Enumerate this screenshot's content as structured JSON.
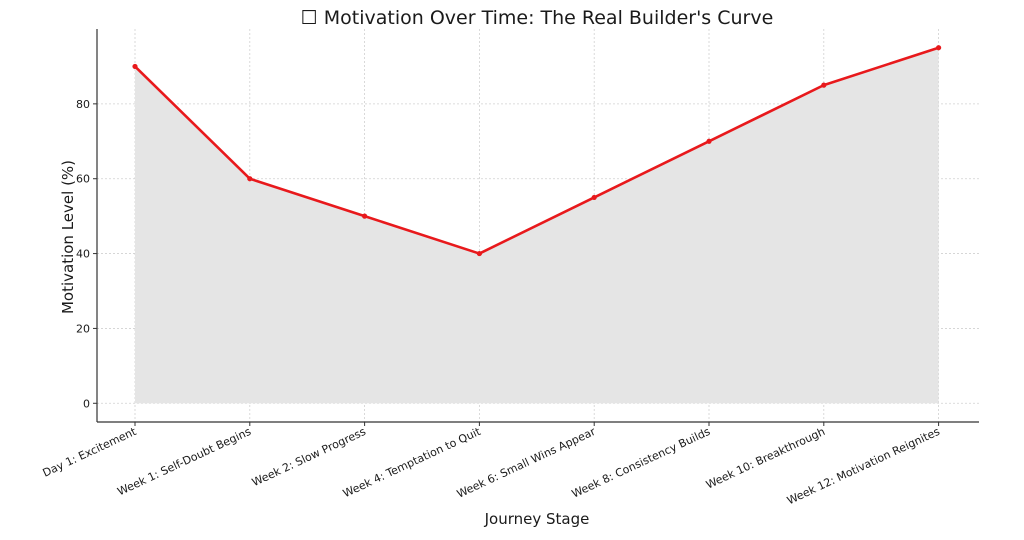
{
  "chart_data": {
    "type": "line",
    "title": "☐ Motivation Over Time: The Real Builder's Curve",
    "xlabel": "Journey Stage",
    "ylabel": "Motivation Level (%)",
    "categories": [
      "Day 1: Excitement",
      "Week 1: Self-Doubt Begins",
      "Week 2: Slow Progress",
      "Week 4: Temptation to Quit",
      "Week 6: Small Wins Appear",
      "Week 8: Consistency Builds",
      "Week 10: Breakthrough",
      "Week 12: Motivation Reignites"
    ],
    "series": [
      {
        "values": [
          90,
          60,
          50,
          40,
          55,
          70,
          85,
          95
        ]
      }
    ],
    "yticks": [
      "0",
      "20",
      "40",
      "60",
      "80"
    ],
    "ylim": [
      -5,
      100
    ],
    "grid": true,
    "filled_area": true,
    "colors": {
      "line": "#e8191c",
      "fill": "#e5e5e5",
      "grid": "#d0d0d0",
      "axis": "#333333"
    }
  }
}
